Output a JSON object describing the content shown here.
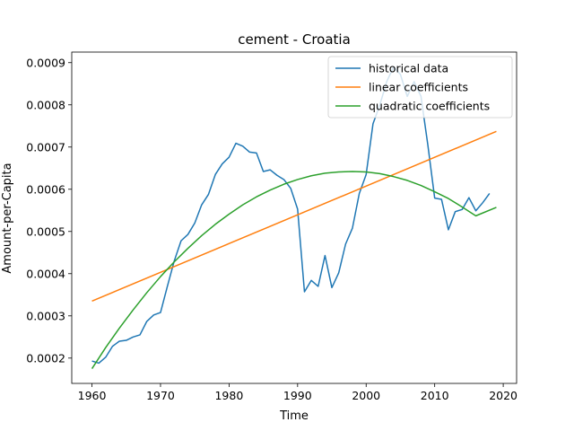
{
  "chart_data": {
    "type": "line",
    "title": "cement - Croatia",
    "xlabel": "Time",
    "ylabel": "Amount-per-Capita",
    "xlim": [
      1957.05,
      2021.95
    ],
    "ylim": [
      0.00014,
      0.000925
    ],
    "x_ticks": [
      1960,
      1970,
      1980,
      1990,
      2000,
      2010,
      2020
    ],
    "x_tick_labels": [
      "1960",
      "1970",
      "1980",
      "1990",
      "2000",
      "2010",
      "2020"
    ],
    "y_ticks": [
      0.0002,
      0.0003,
      0.0004,
      0.0005,
      0.0006,
      0.0007,
      0.0008,
      0.0009
    ],
    "y_tick_labels": [
      "0.0002",
      "0.0003",
      "0.0004",
      "0.0005",
      "0.0006",
      "0.0007",
      "0.0008",
      "0.0009"
    ],
    "grid": false,
    "legend_position": "upper right",
    "series": [
      {
        "name": "historical data",
        "color": "#1f77b4",
        "x": [
          1960,
          1961,
          1962,
          1963,
          1964,
          1965,
          1966,
          1967,
          1968,
          1969,
          1970,
          1971,
          1972,
          1973,
          1974,
          1975,
          1976,
          1977,
          1978,
          1979,
          1980,
          1981,
          1982,
          1983,
          1984,
          1985,
          1986,
          1987,
          1988,
          1989,
          1990,
          1991,
          1992,
          1993,
          1994,
          1995,
          1996,
          1997,
          1998,
          1999,
          2000,
          2001,
          2002,
          2003,
          2004,
          2005,
          2006,
          2007,
          2008,
          2009,
          2010,
          2011,
          2012,
          2013,
          2014,
          2015,
          2016,
          2017,
          2018
        ],
        "y": [
          0.000193,
          0.000188,
          0.000202,
          0.000228,
          0.00024,
          0.000242,
          0.00025,
          0.000255,
          0.000287,
          0.000302,
          0.000308,
          0.00037,
          0.00043,
          0.000478,
          0.000493,
          0.00052,
          0.000563,
          0.000588,
          0.000635,
          0.00066,
          0.000676,
          0.000709,
          0.000702,
          0.000688,
          0.000686,
          0.000642,
          0.000646,
          0.000633,
          0.000623,
          0.000602,
          0.000553,
          0.000357,
          0.000384,
          0.00037,
          0.000443,
          0.000367,
          0.000402,
          0.00047,
          0.000508,
          0.00059,
          0.000635,
          0.000755,
          0.0008,
          0.000855,
          0.00089,
          0.000872,
          0.00082,
          0.000855,
          0.00082,
          0.000705,
          0.000579,
          0.000576,
          0.000504,
          0.000547,
          0.000552,
          0.00058,
          0.000549,
          0.000568,
          0.00059
        ]
      },
      {
        "name": "linear coefficients",
        "color": "#ff7f0e",
        "x": [
          1960,
          2019
        ],
        "y": [
          0.000335,
          0.000737
        ]
      },
      {
        "name": "quadratic coefficients",
        "color": "#2ca02c",
        "x": [
          1960,
          1962,
          1964,
          1966,
          1968,
          1970,
          1972,
          1974,
          1976,
          1978,
          1980,
          1982,
          1984,
          1986,
          1988,
          1990,
          1992,
          1994,
          1996,
          1998,
          2000,
          2002,
          2004,
          2006,
          2008,
          2010,
          2012,
          2014,
          2016,
          2019
        ],
        "y": [
          0.000175,
          0.000225,
          0.000271,
          0.000314,
          0.000355,
          0.000393,
          0.000428,
          0.00046,
          0.00049,
          0.000517,
          0.000541,
          0.000563,
          0.000582,
          0.000598,
          0.000612,
          0.000623,
          0.000632,
          0.000638,
          0.000641,
          0.000642,
          0.000641,
          0.000637,
          0.00063,
          0.000621,
          0.000609,
          0.000594,
          0.000578,
          0.000558,
          0.000537,
          0.000557
        ]
      }
    ]
  }
}
